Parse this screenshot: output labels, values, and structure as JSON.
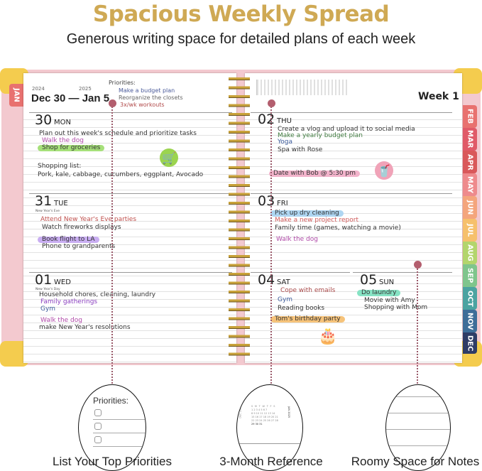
{
  "title": "Spacious Weekly Spread",
  "subtitle": "Generous writing space for detailed plans of each week",
  "left_page": {
    "year_start": "2024",
    "year_end": "2025",
    "range": "Dec 30 — Jan 5",
    "priorities_label": "Priorities:",
    "priorities": [
      "Make a budget plan",
      "Reorganize the closets",
      "3x/wk workouts"
    ],
    "days": [
      {
        "num": "30",
        "name": "MON",
        "entries": [
          "Plan out this week's schedule and prioritize tasks",
          "Walk the dog",
          "Shop for groceries",
          "Shopping list:",
          "Pork, kale, cabbage, cucumbers, eggplant, Avocado"
        ]
      },
      {
        "num": "31",
        "name": "TUE",
        "holiday": "New Year's Eve",
        "entries": [
          "Attend New Year's Eve parties",
          "Watch fireworks displays",
          "Book flight to LA",
          "Phone to grandparents"
        ]
      },
      {
        "num": "01",
        "name": "WED",
        "holiday": "New Year's Day",
        "entries": [
          "Household chores, cleaning, laundry",
          "Family gatherings",
          "Gym",
          "Walk the dog",
          "make New Year's resolutions"
        ]
      }
    ]
  },
  "right_page": {
    "week": "Week 1",
    "days": [
      {
        "num": "02",
        "name": "THU",
        "entries": [
          "Create a vlog and upload it to social media",
          "Make a yearly budget plan",
          "Yoga",
          "Spa with Rose",
          "Date with Bob @ 5:30 pm"
        ]
      },
      {
        "num": "03",
        "name": "FRI",
        "entries": [
          "Pick up dry cleaning",
          "Make a new project report",
          "Family time (games, watching a movie)",
          "Walk the dog"
        ]
      },
      {
        "num": "04",
        "name": "SAT",
        "entries": [
          "Cope with emails",
          "Gym",
          "Reading books",
          "Tom's birthday party"
        ]
      },
      {
        "num": "05",
        "name": "SUN",
        "entries": [
          "Do laundry",
          "Movie with Amy",
          "Shopping with Mom"
        ]
      }
    ]
  },
  "tabs": {
    "left": "JAN",
    "right": [
      "FEB",
      "MAR",
      "APR",
      "MAY",
      "JUN",
      "JUL",
      "AUG",
      "SEP",
      "OCT",
      "NOV",
      "DEC"
    ]
  },
  "tab_colors": [
    "#e8716f",
    "#e05a68",
    "#d9585a",
    "#ee8a8c",
    "#f4a57c",
    "#f6c06c",
    "#b3d56c",
    "#7fc58c",
    "#4ba3a1",
    "#3e6d98",
    "#2e3c66"
  ],
  "icons": [
    "cart-icon",
    "drink-icon",
    "birthday-cake-icon"
  ],
  "features": {
    "priorities": {
      "label": "Priorities:",
      "caption": "List Your Top Priorities"
    },
    "calendar": {
      "month_left": "DEC 2024",
      "month_right": "JAN 2025",
      "weekdays": "S M T W T F S",
      "rows": [
        "1 2 3 4 5 6 7",
        "8 9 10 11 12 13 14",
        "15 16 17 18 19 20 21",
        "22 23 24 25 26 27 28",
        "29 30 31"
      ],
      "caption": "3-Month Reference"
    },
    "notes": {
      "caption": "Roomy Space for Notes"
    }
  }
}
